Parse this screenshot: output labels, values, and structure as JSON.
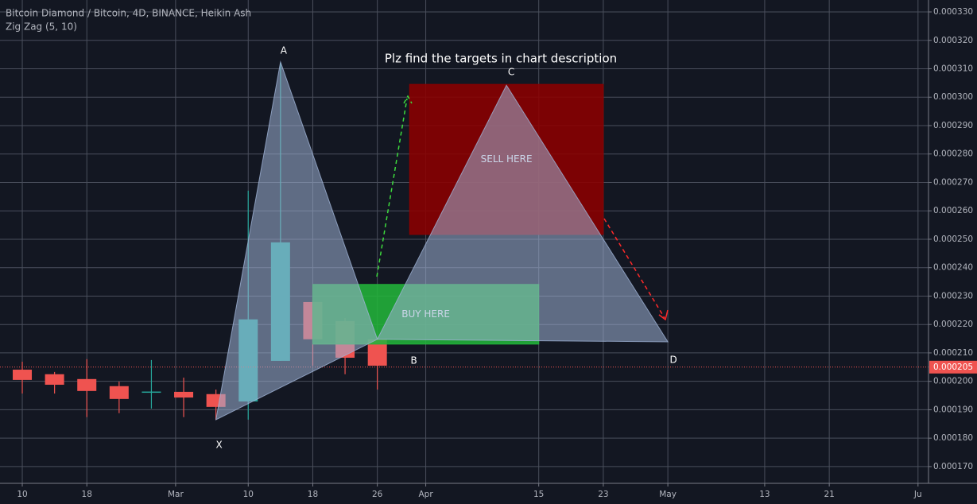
{
  "chart_data": {
    "type": "candlestick",
    "title": "Bitcoin Diamond / Bitcoin, 4D, BINANCE, Heikin Ash",
    "indicator": "Zig Zag (5, 10)",
    "headline": "Plz find the targets in chart description",
    "x": [
      41,
      45,
      49,
      53,
      57,
      61,
      65,
      69,
      73,
      77,
      81,
      85
    ],
    "open": [
      0.0002041,
      0.0002025,
      0.0002008,
      0.0001983,
      0.0001962,
      0.0001963,
      0.0001955,
      0.0001929,
      0.0002072,
      0.0002279,
      0.0002212,
      0.0002148
    ],
    "high": [
      0.0002069,
      0.0002033,
      0.0002078,
      0.0001999,
      0.0002075,
      0.0002013,
      0.0001971,
      0.0002671,
      0.0003122,
      0.0002285,
      0.0002223,
      0.0002156
    ],
    "low": [
      0.0001957,
      0.0001957,
      0.0001874,
      0.0001888,
      0.0001904,
      0.0001874,
      0.0001865,
      0.0001865,
      0.0002072,
      0.0002055,
      0.0002025,
      0.0001971
    ],
    "close": [
      0.0002005,
      0.0001988,
      0.0001966,
      0.0001938,
      0.0001964,
      0.0001943,
      0.000191,
      0.0002218,
      0.0002489,
      0.0002148,
      0.0002083,
      0.0002055
    ],
    "up_color": "#26a69a",
    "down_color": "#ef5350",
    "xlim": [
      38.24,
      153.3
    ],
    "xticks": [
      {
        "value": 41,
        "label": "10"
      },
      {
        "value": 49,
        "label": "18"
      },
      {
        "value": 60,
        "label": "Mar"
      },
      {
        "value": 69,
        "label": "10"
      },
      {
        "value": 77,
        "label": "18"
      },
      {
        "value": 85,
        "label": "26"
      },
      {
        "value": 91,
        "label": "Apr"
      },
      {
        "value": 105,
        "label": "15"
      },
      {
        "value": 113,
        "label": "23"
      },
      {
        "value": 121,
        "label": "May"
      },
      {
        "value": 133,
        "label": "13"
      },
      {
        "value": 141,
        "label": "21"
      },
      {
        "value": 152,
        "label": "Ju"
      }
    ],
    "ylim": [
      0.0001641,
      0.0003342
    ],
    "yticks": [
      {
        "value": 0.00017,
        "label": "0.000170"
      },
      {
        "value": 0.00018,
        "label": "0.000180"
      },
      {
        "value": 0.00019,
        "label": "0.000190"
      },
      {
        "value": 0.0002,
        "label": "0.000200"
      },
      {
        "value": 0.00021,
        "label": "0.000210"
      },
      {
        "value": 0.00022,
        "label": "0.000220"
      },
      {
        "value": 0.00023,
        "label": "0.000230"
      },
      {
        "value": 0.00024,
        "label": "0.000240"
      },
      {
        "value": 0.00025,
        "label": "0.000250"
      },
      {
        "value": 0.00026,
        "label": "0.000260"
      },
      {
        "value": 0.00027,
        "label": "0.000270"
      },
      {
        "value": 0.00028,
        "label": "0.000280"
      },
      {
        "value": 0.00029,
        "label": "0.000290"
      },
      {
        "value": 0.0003,
        "label": "0.000300"
      },
      {
        "value": 0.00031,
        "label": "0.000310"
      },
      {
        "value": 0.00032,
        "label": "0.000320"
      },
      {
        "value": 0.00033,
        "label": "0.000330"
      }
    ],
    "grid": true,
    "last_price": {
      "value": 0.000205,
      "label": "0.000205"
    },
    "boxes": [
      {
        "label": "SELL HERE",
        "x": [
          89,
          113
        ],
        "y": [
          0.0002517,
          0.0003045
        ],
        "color": "#8b0000"
      },
      {
        "label": "BUY HERE",
        "x": [
          77,
          105
        ],
        "y": [
          0.0002131,
          0.0002341
        ],
        "color": "#22b43a"
      }
    ],
    "pattern": {
      "color": "#9fb3d6",
      "points": [
        {
          "label": "X",
          "x": 65,
          "y": 0.0001865
        },
        {
          "label": "A",
          "x": 73,
          "y": 0.0003124
        },
        {
          "label": "B",
          "x": 85,
          "y": 0.0002148
        },
        {
          "label": "C",
          "x": 101,
          "y": 0.0003042
        },
        {
          "label": "D",
          "x": 121,
          "y": 0.0002139
        }
      ]
    }
  }
}
